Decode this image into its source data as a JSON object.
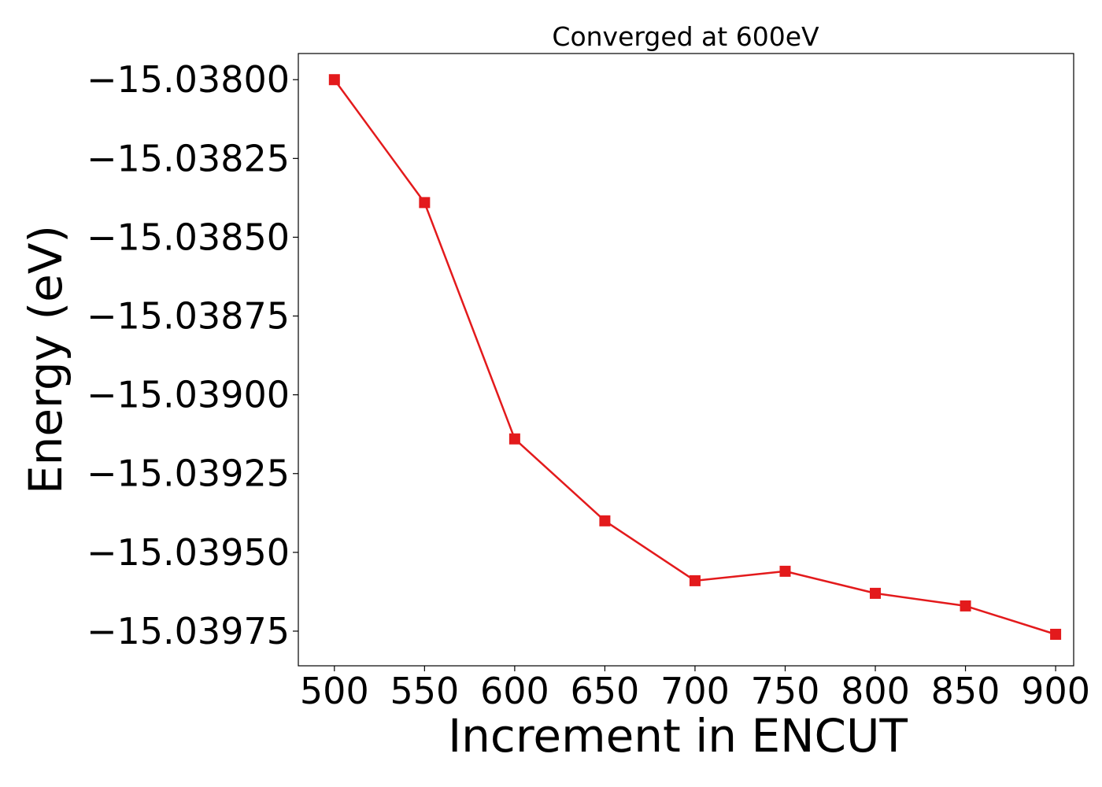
{
  "chart_data": {
    "type": "line",
    "title": "Converged at 600eV",
    "xlabel": "Increment in ENCUT",
    "ylabel": "Energy (eV)",
    "x": [
      500,
      550,
      600,
      650,
      700,
      750,
      800,
      850,
      900
    ],
    "series": [
      {
        "values": [
          -15.038,
          -15.03839,
          -15.03914,
          -15.0394,
          -15.03959,
          -15.03956,
          -15.03963,
          -15.03967,
          -15.03976
        ],
        "color": "#e31a1c",
        "marker": "square"
      }
    ],
    "xticks": [
      "500",
      "550",
      "600",
      "650",
      "700",
      "750",
      "800",
      "850",
      "900"
    ],
    "yticks": [
      "−15.03800",
      "−15.03825",
      "−15.03850",
      "−15.03875",
      "−15.03900",
      "−15.03925",
      "−15.03950",
      "−15.03975"
    ],
    "ytick_values": [
      -15.038,
      -15.03825,
      -15.0385,
      -15.03875,
      -15.039,
      -15.03925,
      -15.0395,
      -15.03975
    ],
    "xlim": [
      480,
      910
    ],
    "ylim": [
      -15.03986,
      -15.037917
    ],
    "grid": false
  }
}
